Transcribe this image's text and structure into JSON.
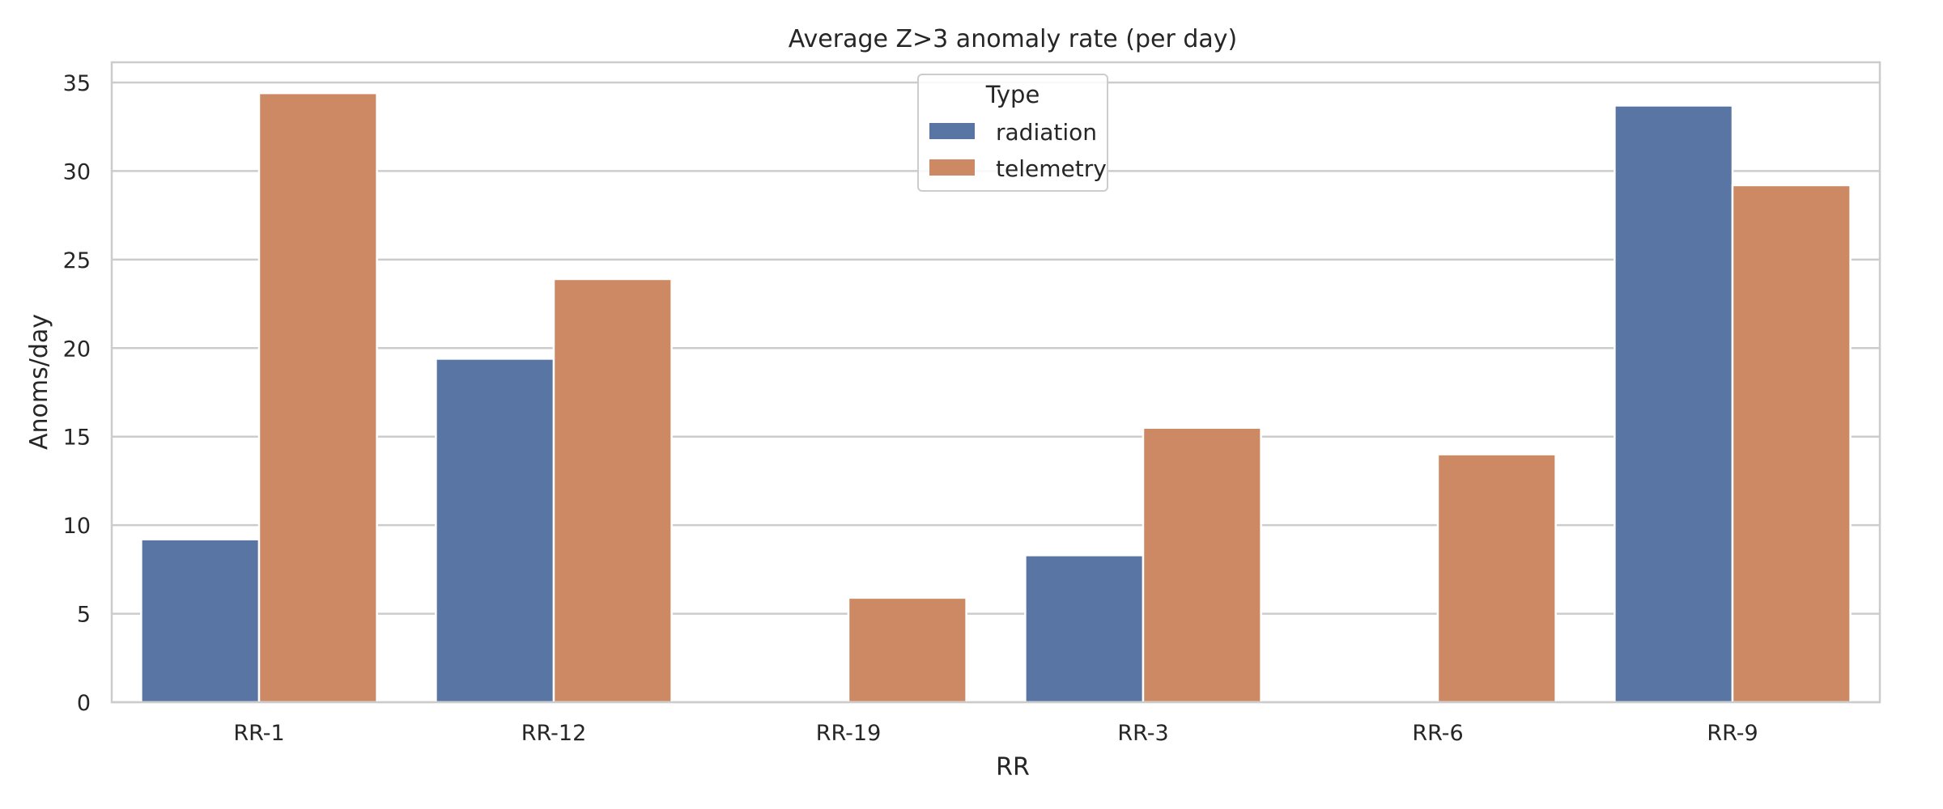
{
  "chart_data": {
    "type": "bar",
    "title": "Average Z>3 anomaly rate (per day)",
    "xlabel": "RR",
    "ylabel": "Anoms/day",
    "categories": [
      "RR-1",
      "RR-12",
      "RR-19",
      "RR-3",
      "RR-6",
      "RR-9"
    ],
    "series": [
      {
        "name": "radiation",
        "color": "#5875a4",
        "values": [
          9.2,
          19.4,
          null,
          8.3,
          null,
          33.7
        ]
      },
      {
        "name": "telemetry",
        "color": "#cc8963",
        "values": [
          34.4,
          23.9,
          5.9,
          15.5,
          14.0,
          29.2
        ]
      }
    ],
    "ylim": [
      0,
      36
    ],
    "yticks": [
      0,
      5,
      10,
      15,
      20,
      25,
      30,
      35
    ],
    "grid": true,
    "legend": {
      "title": "Type",
      "placement": "top-center"
    }
  }
}
